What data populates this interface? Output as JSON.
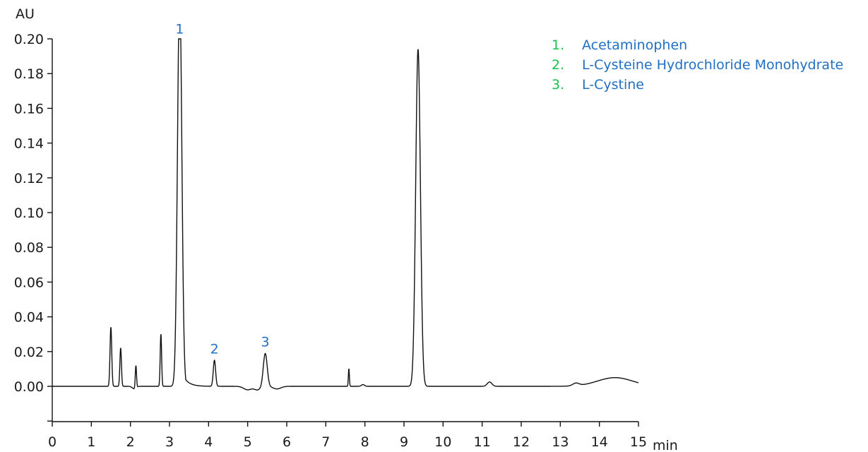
{
  "chart_data": {
    "type": "line",
    "ylabel": "AU",
    "xlabel": "min",
    "xlim": [
      0,
      15
    ],
    "ylim": [
      -0.02,
      0.2
    ],
    "x_ticks": [
      "0",
      "1",
      "2",
      "3",
      "4",
      "5",
      "6",
      "7",
      "8",
      "9",
      "10",
      "11",
      "12",
      "13",
      "14",
      "15"
    ],
    "y_ticks": [
      "0.20",
      "0.18",
      "0.16",
      "0.14",
      "0.12",
      "0.10",
      "0.08",
      "0.06",
      "0.04",
      "0.02",
      "0.00"
    ],
    "grid": false,
    "colors": {
      "trace": "#111111",
      "peak_label": "#1f6fc4",
      "legend_number": "#16c24a",
      "legend_text": "#1f6fc4"
    },
    "series": [
      {
        "baseline": 0.0,
        "peaks": [
          {
            "rt": 1.5,
            "height": 0.034,
            "width": 0.022
          },
          {
            "rt": 1.75,
            "height": 0.022,
            "width": 0.02
          },
          {
            "rt": 2.14,
            "height": 0.013,
            "width": 0.016
          },
          {
            "rt": 2.78,
            "height": 0.03,
            "width": 0.018
          },
          {
            "rt": 3.26,
            "height": 0.23,
            "width": 0.055,
            "tail": 0.14
          },
          {
            "rt": 4.15,
            "height": 0.015,
            "width": 0.03
          },
          {
            "rt": 5.45,
            "height": 0.019,
            "width": 0.05
          },
          {
            "rt": 7.59,
            "height": 0.01,
            "width": 0.013
          },
          {
            "rt": 7.95,
            "height": 0.001,
            "width": 0.04
          },
          {
            "rt": 9.36,
            "height": 0.194,
            "width": 0.06
          },
          {
            "rt": 11.19,
            "height": 0.0025,
            "width": 0.06
          },
          {
            "rt": 13.4,
            "height": 0.0015,
            "width": 0.08
          },
          {
            "rt": 14.4,
            "height": 0.005,
            "width": 0.45
          }
        ],
        "dips": [
          {
            "rt": 2.1,
            "depth": -0.0015,
            "width": 0.05
          },
          {
            "rt": 5.0,
            "depth": -0.002,
            "width": 0.1
          },
          {
            "rt": 5.25,
            "depth": -0.002,
            "width": 0.08
          },
          {
            "rt": 5.75,
            "depth": -0.0015,
            "width": 0.1
          }
        ]
      }
    ],
    "annotations": [
      {
        "text": "1",
        "x": 3.26,
        "y": 0.203
      },
      {
        "text": "2",
        "x": 4.15,
        "y": 0.019
      },
      {
        "text": "3",
        "x": 5.45,
        "y": 0.023
      }
    ]
  },
  "legend": {
    "items": [
      {
        "number": "1.",
        "text": "Acetaminophen"
      },
      {
        "number": "2.",
        "text": "L-Cysteine Hydrochloride Monohydrate"
      },
      {
        "number": "3.",
        "text": "L-Cystine"
      }
    ]
  }
}
